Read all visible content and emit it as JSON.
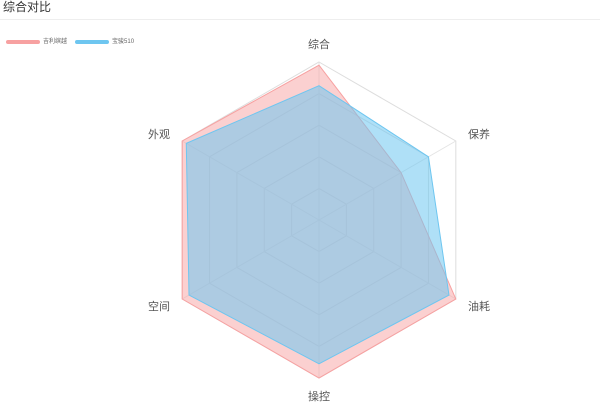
{
  "page": {
    "title": "综合对比"
  },
  "legend": [
    {
      "name": "吉利缤越",
      "color": "#f7a1a1"
    },
    {
      "name": "宝骏510",
      "color": "#6ec6f0"
    }
  ],
  "chart_data": {
    "type": "radar",
    "title": "综合对比",
    "indicators": [
      "综合",
      "保养",
      "油耗",
      "操控",
      "空间",
      "外观"
    ],
    "max": 100,
    "split_number": 5,
    "series": [
      {
        "name": "吉利缤越",
        "color": "#f7a1a1",
        "values": [
          98,
          60,
          100,
          100,
          100,
          100
        ]
      },
      {
        "name": "宝骏510",
        "color": "#6ec6f0",
        "values": [
          85,
          80,
          95,
          91,
          95,
          97
        ]
      }
    ]
  }
}
